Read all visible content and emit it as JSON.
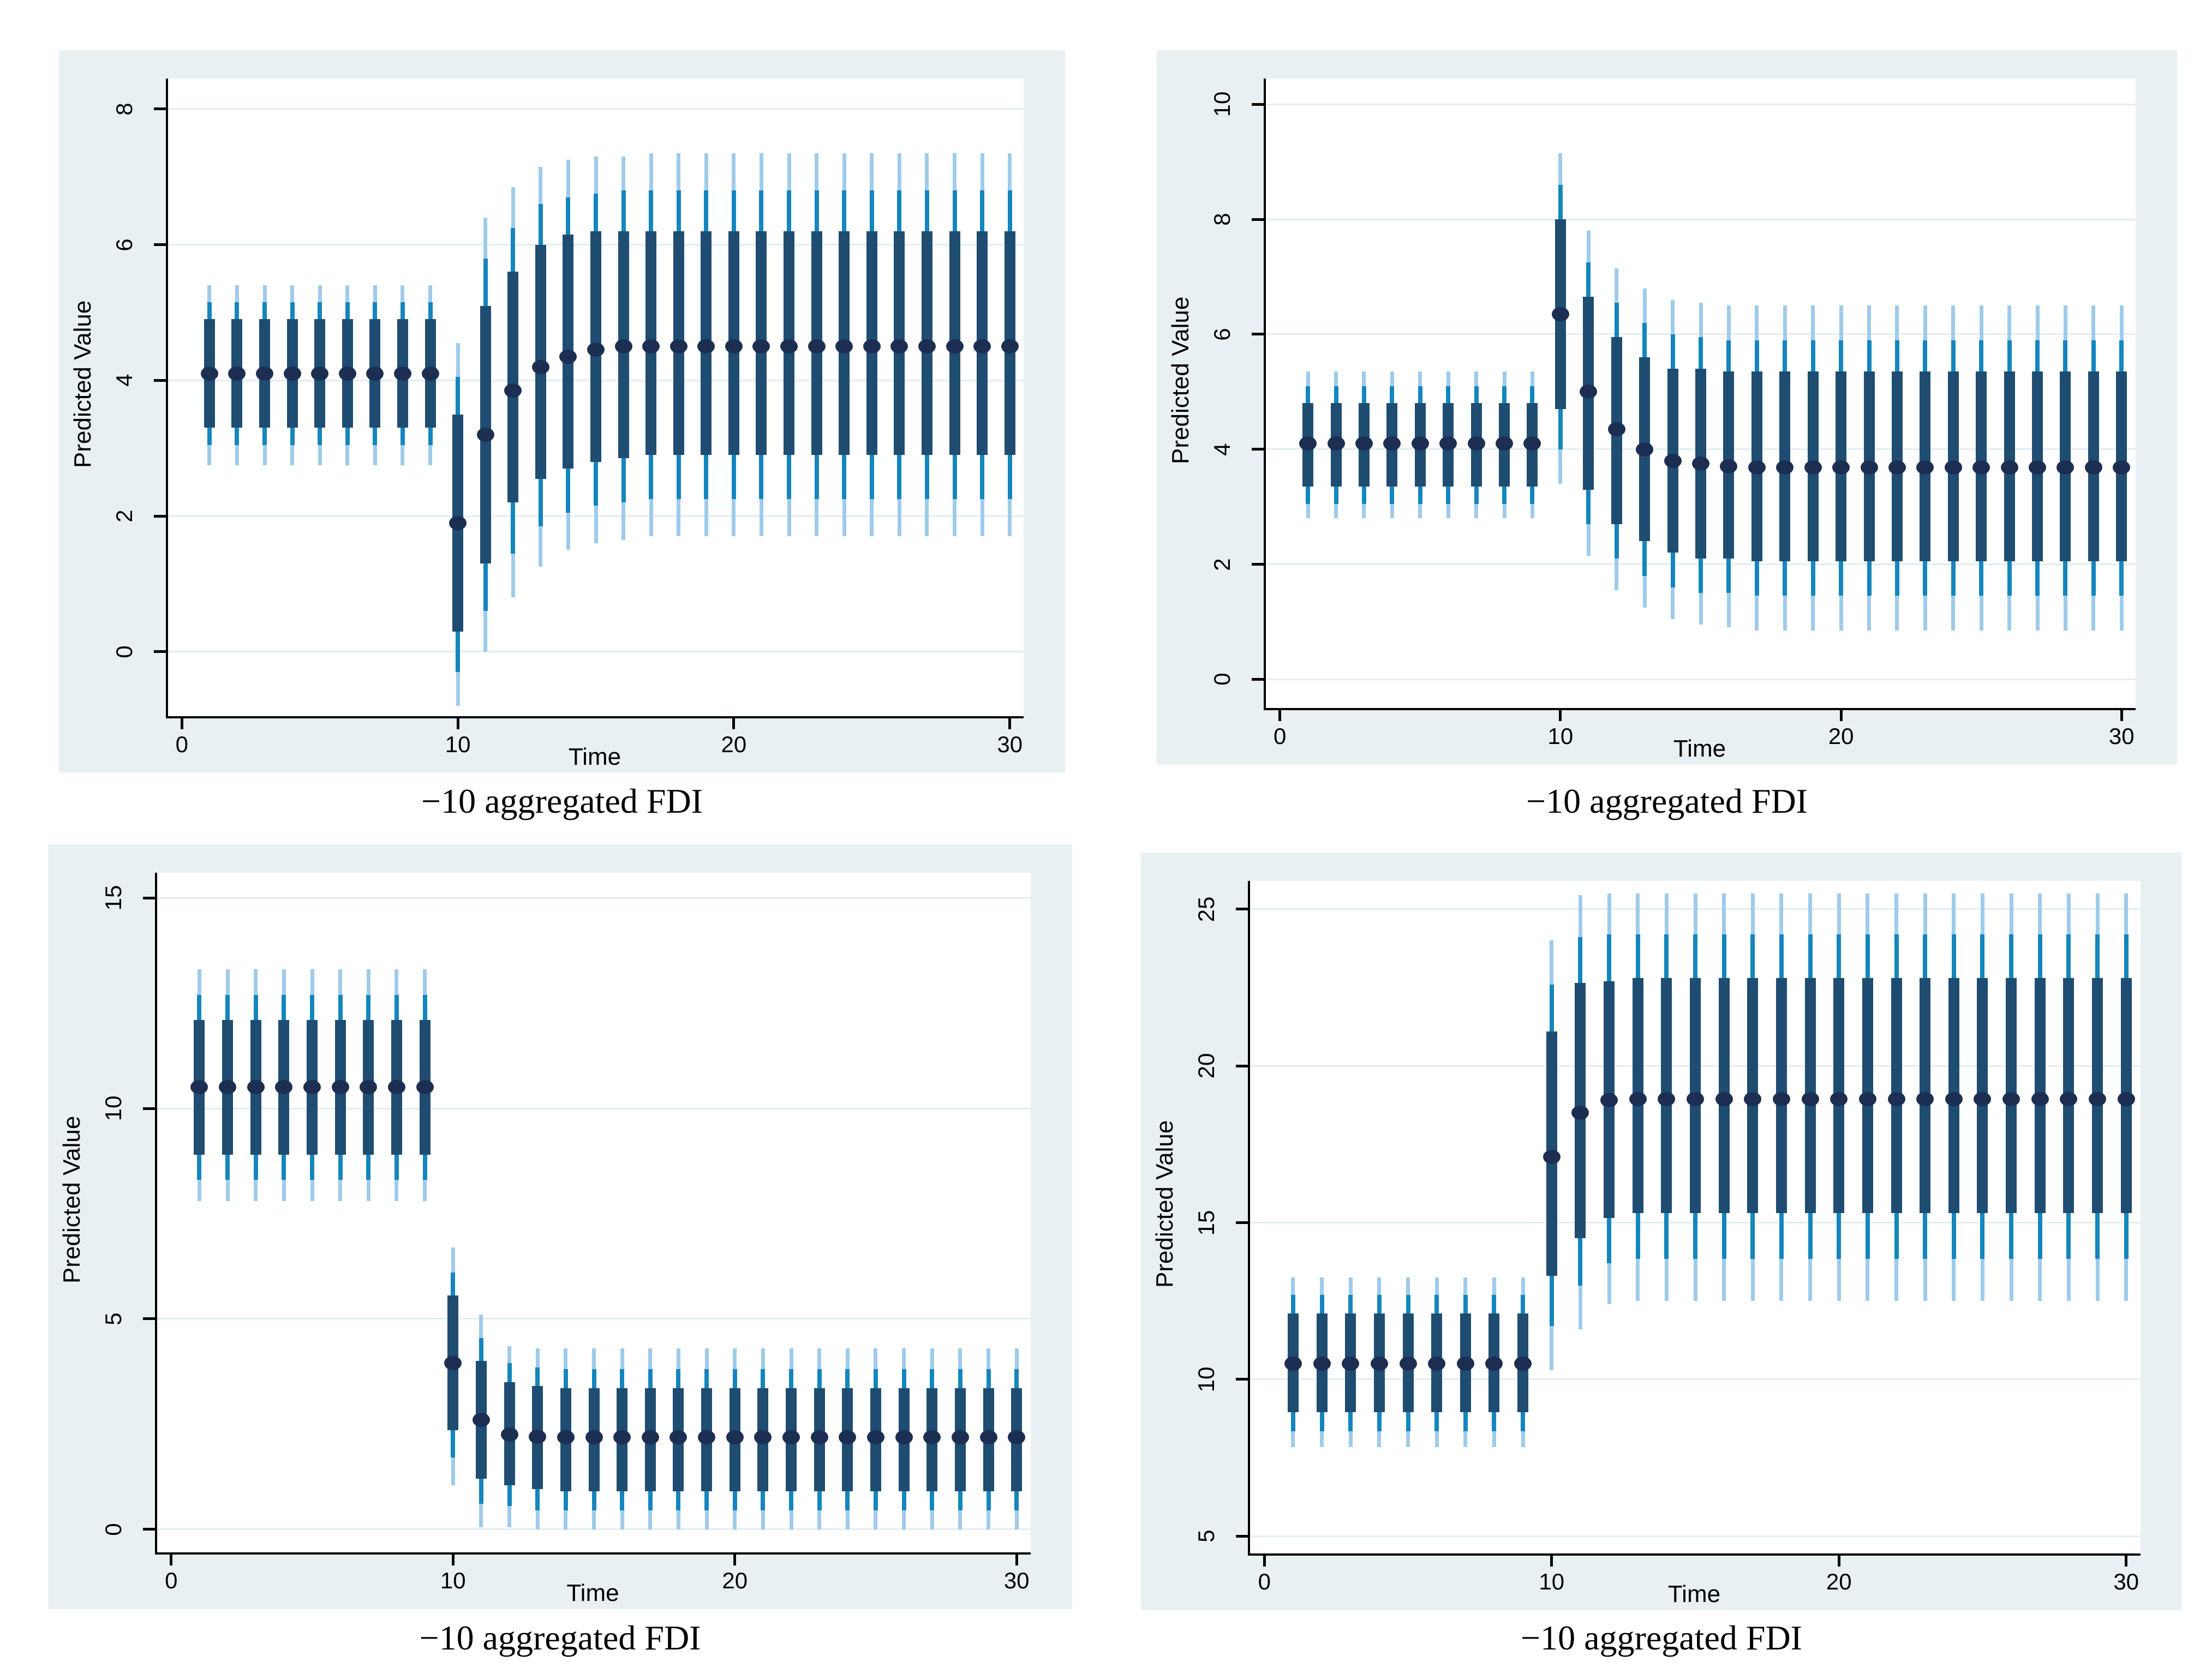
{
  "colors": {
    "panel_bg": "#e9f0f3",
    "plot_bg": "#ffffff",
    "gridline": "#e2edf3",
    "axis": "#000000",
    "text": "#000000",
    "point_dot": "#1c2e52",
    "ci_inner_bar": "#1f4d72",
    "ci_mid_line": "#1486bd",
    "ci_outer_line": "#9fcbea"
  },
  "point_format": "[time, mean, inner_lo, inner_hi, mid_lo, mid_hi, outer_lo, outer_hi]",
  "chart_data": [
    {
      "type": "scatter",
      "position": "top-left",
      "ylabel": "Predicted Value",
      "xlabel": "Time",
      "caption": "−10 aggregated FDI",
      "y_ticks": [
        0,
        2,
        4,
        6,
        8
      ],
      "x_ticks": [
        0,
        10,
        20,
        30
      ],
      "y_range": [
        -0.95,
        8.45
      ],
      "x_range": [
        -0.5,
        30.5
      ],
      "grid": true,
      "legend": "none",
      "points": [
        [
          1,
          4.1,
          3.3,
          4.9,
          3.05,
          5.15,
          2.75,
          5.4
        ],
        [
          2,
          4.1,
          3.3,
          4.9,
          3.05,
          5.15,
          2.75,
          5.4
        ],
        [
          3,
          4.1,
          3.3,
          4.9,
          3.05,
          5.15,
          2.75,
          5.4
        ],
        [
          4,
          4.1,
          3.3,
          4.9,
          3.05,
          5.15,
          2.75,
          5.4
        ],
        [
          5,
          4.1,
          3.3,
          4.9,
          3.05,
          5.15,
          2.75,
          5.4
        ],
        [
          6,
          4.1,
          3.3,
          4.9,
          3.05,
          5.15,
          2.75,
          5.4
        ],
        [
          7,
          4.1,
          3.3,
          4.9,
          3.05,
          5.15,
          2.75,
          5.4
        ],
        [
          8,
          4.1,
          3.3,
          4.9,
          3.05,
          5.15,
          2.75,
          5.4
        ],
        [
          9,
          4.1,
          3.3,
          4.9,
          3.05,
          5.15,
          2.75,
          5.4
        ],
        [
          10,
          1.9,
          0.3,
          3.5,
          -0.3,
          4.05,
          -0.8,
          4.55
        ],
        [
          11,
          3.2,
          1.3,
          5.1,
          0.6,
          5.8,
          0.0,
          6.4
        ],
        [
          12,
          3.85,
          2.2,
          5.6,
          1.45,
          6.25,
          0.8,
          6.85
        ],
        [
          13,
          4.2,
          2.55,
          6.0,
          1.85,
          6.6,
          1.25,
          7.15
        ],
        [
          14,
          4.35,
          2.7,
          6.15,
          2.05,
          6.7,
          1.5,
          7.25
        ],
        [
          15,
          4.45,
          2.8,
          6.2,
          2.15,
          6.75,
          1.6,
          7.3
        ],
        [
          16,
          4.5,
          2.85,
          6.2,
          2.2,
          6.8,
          1.65,
          7.3
        ],
        [
          17,
          4.5,
          2.9,
          6.2,
          2.25,
          6.8,
          1.7,
          7.35
        ],
        [
          18,
          4.5,
          2.9,
          6.2,
          2.25,
          6.8,
          1.7,
          7.35
        ],
        [
          19,
          4.5,
          2.9,
          6.2,
          2.25,
          6.8,
          1.7,
          7.35
        ],
        [
          20,
          4.5,
          2.9,
          6.2,
          2.25,
          6.8,
          1.7,
          7.35
        ],
        [
          21,
          4.5,
          2.9,
          6.2,
          2.25,
          6.8,
          1.7,
          7.35
        ],
        [
          22,
          4.5,
          2.9,
          6.2,
          2.25,
          6.8,
          1.7,
          7.35
        ],
        [
          23,
          4.5,
          2.9,
          6.2,
          2.25,
          6.8,
          1.7,
          7.35
        ],
        [
          24,
          4.5,
          2.9,
          6.2,
          2.25,
          6.8,
          1.7,
          7.35
        ],
        [
          25,
          4.5,
          2.9,
          6.2,
          2.25,
          6.8,
          1.7,
          7.35
        ],
        [
          26,
          4.5,
          2.9,
          6.2,
          2.25,
          6.8,
          1.7,
          7.35
        ],
        [
          27,
          4.5,
          2.9,
          6.2,
          2.25,
          6.8,
          1.7,
          7.35
        ],
        [
          28,
          4.5,
          2.9,
          6.2,
          2.25,
          6.8,
          1.7,
          7.35
        ],
        [
          29,
          4.5,
          2.9,
          6.2,
          2.25,
          6.8,
          1.7,
          7.35
        ],
        [
          30,
          4.5,
          2.9,
          6.2,
          2.25,
          6.8,
          1.7,
          7.35
        ]
      ]
    },
    {
      "type": "scatter",
      "position": "top-right",
      "ylabel": "Predicted Value",
      "xlabel": "Time",
      "caption": "−10 aggregated FDI",
      "y_ticks": [
        0,
        2,
        4,
        6,
        8,
        10
      ],
      "x_ticks": [
        0,
        10,
        20,
        30
      ],
      "y_range": [
        -0.5,
        10.45
      ],
      "x_range": [
        -0.5,
        30.5
      ],
      "grid": true,
      "legend": "none",
      "points": [
        [
          1,
          4.1,
          3.35,
          4.8,
          3.05,
          5.1,
          2.8,
          5.35
        ],
        [
          2,
          4.1,
          3.35,
          4.8,
          3.05,
          5.1,
          2.8,
          5.35
        ],
        [
          3,
          4.1,
          3.35,
          4.8,
          3.05,
          5.1,
          2.8,
          5.35
        ],
        [
          4,
          4.1,
          3.35,
          4.8,
          3.05,
          5.1,
          2.8,
          5.35
        ],
        [
          5,
          4.1,
          3.35,
          4.8,
          3.05,
          5.1,
          2.8,
          5.35
        ],
        [
          6,
          4.1,
          3.35,
          4.8,
          3.05,
          5.1,
          2.8,
          5.35
        ],
        [
          7,
          4.1,
          3.35,
          4.8,
          3.05,
          5.1,
          2.8,
          5.35
        ],
        [
          8,
          4.1,
          3.35,
          4.8,
          3.05,
          5.1,
          2.8,
          5.35
        ],
        [
          9,
          4.1,
          3.35,
          4.8,
          3.05,
          5.1,
          2.8,
          5.35
        ],
        [
          10,
          6.35,
          4.7,
          8.0,
          4.0,
          8.6,
          3.4,
          9.15
        ],
        [
          11,
          5.0,
          3.3,
          6.65,
          2.7,
          7.25,
          2.15,
          7.8
        ],
        [
          12,
          4.35,
          2.7,
          5.95,
          2.1,
          6.55,
          1.55,
          7.15
        ],
        [
          13,
          4.0,
          2.4,
          5.6,
          1.8,
          6.2,
          1.25,
          6.8
        ],
        [
          14,
          3.8,
          2.2,
          5.4,
          1.6,
          6.0,
          1.05,
          6.6
        ],
        [
          15,
          3.75,
          2.1,
          5.4,
          1.5,
          5.95,
          0.95,
          6.55
        ],
        [
          16,
          3.7,
          2.1,
          5.35,
          1.5,
          5.9,
          0.9,
          6.5
        ],
        [
          17,
          3.68,
          2.05,
          5.35,
          1.45,
          5.9,
          0.85,
          6.5
        ],
        [
          18,
          3.68,
          2.05,
          5.35,
          1.45,
          5.9,
          0.85,
          6.5
        ],
        [
          19,
          3.68,
          2.05,
          5.35,
          1.45,
          5.9,
          0.85,
          6.5
        ],
        [
          20,
          3.68,
          2.05,
          5.35,
          1.45,
          5.9,
          0.85,
          6.5
        ],
        [
          21,
          3.68,
          2.05,
          5.35,
          1.45,
          5.9,
          0.85,
          6.5
        ],
        [
          22,
          3.68,
          2.05,
          5.35,
          1.45,
          5.9,
          0.85,
          6.5
        ],
        [
          23,
          3.68,
          2.05,
          5.35,
          1.45,
          5.9,
          0.85,
          6.5
        ],
        [
          24,
          3.68,
          2.05,
          5.35,
          1.45,
          5.9,
          0.85,
          6.5
        ],
        [
          25,
          3.68,
          2.05,
          5.35,
          1.45,
          5.9,
          0.85,
          6.5
        ],
        [
          26,
          3.68,
          2.05,
          5.35,
          1.45,
          5.9,
          0.85,
          6.5
        ],
        [
          27,
          3.68,
          2.05,
          5.35,
          1.45,
          5.9,
          0.85,
          6.5
        ],
        [
          28,
          3.68,
          2.05,
          5.35,
          1.45,
          5.9,
          0.85,
          6.5
        ],
        [
          29,
          3.68,
          2.05,
          5.35,
          1.45,
          5.9,
          0.85,
          6.5
        ],
        [
          30,
          3.68,
          2.05,
          5.35,
          1.45,
          5.9,
          0.85,
          6.5
        ]
      ]
    },
    {
      "type": "scatter",
      "position": "bottom-left",
      "ylabel": "Predicted Value",
      "xlabel": "Time",
      "caption": "−10 aggregated FDI",
      "y_ticks": [
        0,
        5,
        10,
        15
      ],
      "x_ticks": [
        0,
        10,
        20,
        30
      ],
      "y_range": [
        -0.55,
        15.6
      ],
      "x_range": [
        -0.5,
        30.5
      ],
      "grid": true,
      "legend": "none",
      "points": [
        [
          1,
          10.5,
          8.9,
          12.1,
          8.3,
          12.7,
          7.8,
          13.3
        ],
        [
          2,
          10.5,
          8.9,
          12.1,
          8.3,
          12.7,
          7.8,
          13.3
        ],
        [
          3,
          10.5,
          8.9,
          12.1,
          8.3,
          12.7,
          7.8,
          13.3
        ],
        [
          4,
          10.5,
          8.9,
          12.1,
          8.3,
          12.7,
          7.8,
          13.3
        ],
        [
          5,
          10.5,
          8.9,
          12.1,
          8.3,
          12.7,
          7.8,
          13.3
        ],
        [
          6,
          10.5,
          8.9,
          12.1,
          8.3,
          12.7,
          7.8,
          13.3
        ],
        [
          7,
          10.5,
          8.9,
          12.1,
          8.3,
          12.7,
          7.8,
          13.3
        ],
        [
          8,
          10.5,
          8.9,
          12.1,
          8.3,
          12.7,
          7.8,
          13.3
        ],
        [
          9,
          10.5,
          8.9,
          12.1,
          8.3,
          12.7,
          7.8,
          13.3
        ],
        [
          10,
          3.95,
          2.35,
          5.55,
          1.7,
          6.1,
          1.05,
          6.7
        ],
        [
          11,
          2.6,
          1.2,
          4.0,
          0.6,
          4.55,
          0.05,
          5.1
        ],
        [
          12,
          2.25,
          1.05,
          3.5,
          0.55,
          3.95,
          0.05,
          4.35
        ],
        [
          13,
          2.2,
          0.95,
          3.4,
          0.45,
          3.85,
          0.0,
          4.3
        ],
        [
          14,
          2.18,
          0.9,
          3.35,
          0.45,
          3.8,
          0.0,
          4.3
        ],
        [
          15,
          2.18,
          0.9,
          3.35,
          0.45,
          3.8,
          0.0,
          4.3
        ],
        [
          16,
          2.18,
          0.9,
          3.35,
          0.45,
          3.8,
          0.0,
          4.3
        ],
        [
          17,
          2.18,
          0.9,
          3.35,
          0.45,
          3.8,
          0.0,
          4.3
        ],
        [
          18,
          2.18,
          0.9,
          3.35,
          0.45,
          3.8,
          0.0,
          4.3
        ],
        [
          19,
          2.18,
          0.9,
          3.35,
          0.45,
          3.8,
          0.0,
          4.3
        ],
        [
          20,
          2.18,
          0.9,
          3.35,
          0.45,
          3.8,
          0.0,
          4.3
        ],
        [
          21,
          2.18,
          0.9,
          3.35,
          0.45,
          3.8,
          0.0,
          4.3
        ],
        [
          22,
          2.18,
          0.9,
          3.35,
          0.45,
          3.8,
          0.0,
          4.3
        ],
        [
          23,
          2.18,
          0.9,
          3.35,
          0.45,
          3.8,
          0.0,
          4.3
        ],
        [
          24,
          2.18,
          0.9,
          3.35,
          0.45,
          3.8,
          0.0,
          4.3
        ],
        [
          25,
          2.18,
          0.9,
          3.35,
          0.45,
          3.8,
          0.0,
          4.3
        ],
        [
          26,
          2.18,
          0.9,
          3.35,
          0.45,
          3.8,
          0.0,
          4.3
        ],
        [
          27,
          2.18,
          0.9,
          3.35,
          0.45,
          3.8,
          0.0,
          4.3
        ],
        [
          28,
          2.18,
          0.9,
          3.35,
          0.45,
          3.8,
          0.0,
          4.3
        ],
        [
          29,
          2.18,
          0.9,
          3.35,
          0.45,
          3.8,
          0.0,
          4.3
        ],
        [
          30,
          2.18,
          0.9,
          3.35,
          0.45,
          3.8,
          0.0,
          4.3
        ]
      ]
    },
    {
      "type": "scatter",
      "position": "bottom-right",
      "ylabel": "Predicted Value",
      "xlabel": "Time",
      "caption": "−10 aggregated FDI",
      "y_ticks": [
        5,
        10,
        15,
        20,
        25
      ],
      "x_ticks": [
        0,
        10,
        20,
        30
      ],
      "y_range": [
        4.45,
        25.9
      ],
      "x_range": [
        -0.5,
        30.5
      ],
      "grid": true,
      "legend": "none",
      "points": [
        [
          1,
          10.5,
          8.95,
          12.1,
          8.35,
          12.7,
          7.85,
          13.25
        ],
        [
          2,
          10.5,
          8.95,
          12.1,
          8.35,
          12.7,
          7.85,
          13.25
        ],
        [
          3,
          10.5,
          8.95,
          12.1,
          8.35,
          12.7,
          7.85,
          13.25
        ],
        [
          4,
          10.5,
          8.95,
          12.1,
          8.35,
          12.7,
          7.85,
          13.25
        ],
        [
          5,
          10.5,
          8.95,
          12.1,
          8.35,
          12.7,
          7.85,
          13.25
        ],
        [
          6,
          10.5,
          8.95,
          12.1,
          8.35,
          12.7,
          7.85,
          13.25
        ],
        [
          7,
          10.5,
          8.95,
          12.1,
          8.35,
          12.7,
          7.85,
          13.25
        ],
        [
          8,
          10.5,
          8.95,
          12.1,
          8.35,
          12.7,
          7.85,
          13.25
        ],
        [
          9,
          10.5,
          8.95,
          12.1,
          8.35,
          12.7,
          7.85,
          13.25
        ],
        [
          10,
          17.1,
          13.3,
          21.1,
          11.7,
          22.6,
          10.3,
          24.0
        ],
        [
          11,
          18.5,
          14.5,
          22.65,
          13.0,
          24.1,
          11.6,
          25.45
        ],
        [
          12,
          18.9,
          15.15,
          22.7,
          13.7,
          24.2,
          12.4,
          25.5
        ],
        [
          13,
          18.95,
          15.3,
          22.8,
          13.85,
          24.2,
          12.5,
          25.5
        ],
        [
          14,
          18.95,
          15.3,
          22.8,
          13.85,
          24.2,
          12.5,
          25.5
        ],
        [
          15,
          18.95,
          15.3,
          22.8,
          13.85,
          24.2,
          12.5,
          25.5
        ],
        [
          16,
          18.95,
          15.3,
          22.8,
          13.85,
          24.2,
          12.5,
          25.5
        ],
        [
          17,
          18.95,
          15.3,
          22.8,
          13.85,
          24.2,
          12.5,
          25.5
        ],
        [
          18,
          18.95,
          15.3,
          22.8,
          13.85,
          24.2,
          12.5,
          25.5
        ],
        [
          19,
          18.95,
          15.3,
          22.8,
          13.85,
          24.2,
          12.5,
          25.5
        ],
        [
          20,
          18.95,
          15.3,
          22.8,
          13.85,
          24.2,
          12.5,
          25.5
        ],
        [
          21,
          18.95,
          15.3,
          22.8,
          13.85,
          24.2,
          12.5,
          25.5
        ],
        [
          22,
          18.95,
          15.3,
          22.8,
          13.85,
          24.2,
          12.5,
          25.5
        ],
        [
          23,
          18.95,
          15.3,
          22.8,
          13.85,
          24.2,
          12.5,
          25.5
        ],
        [
          24,
          18.95,
          15.3,
          22.8,
          13.85,
          24.2,
          12.5,
          25.5
        ],
        [
          25,
          18.95,
          15.3,
          22.8,
          13.85,
          24.2,
          12.5,
          25.5
        ],
        [
          26,
          18.95,
          15.3,
          22.8,
          13.85,
          24.2,
          12.5,
          25.5
        ],
        [
          27,
          18.95,
          15.3,
          22.8,
          13.85,
          24.2,
          12.5,
          25.5
        ],
        [
          28,
          18.95,
          15.3,
          22.8,
          13.85,
          24.2,
          12.5,
          25.5
        ],
        [
          29,
          18.95,
          15.3,
          22.8,
          13.85,
          24.2,
          12.5,
          25.5
        ],
        [
          30,
          18.95,
          15.3,
          22.8,
          13.85,
          24.2,
          12.5,
          25.5
        ]
      ]
    }
  ]
}
